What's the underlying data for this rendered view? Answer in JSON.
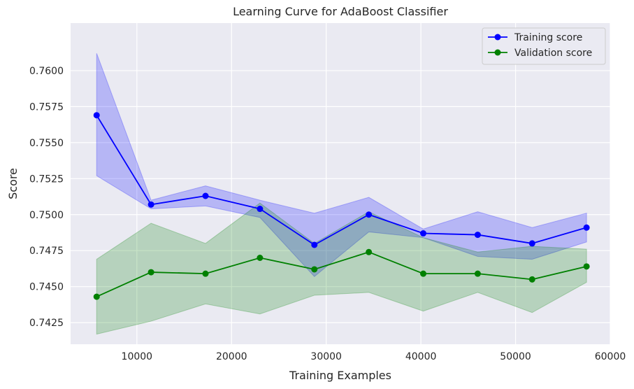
{
  "chart_data": {
    "type": "line",
    "title": "Learning Curve for AdaBoost Classifier",
    "xlabel": "Training Examples",
    "ylabel": "Score",
    "xlim": [
      3000,
      60000
    ],
    "ylim": [
      0.741,
      0.7633
    ],
    "xticks": [
      10000,
      20000,
      30000,
      40000,
      50000,
      60000
    ],
    "yticks": [
      0.7425,
      0.745,
      0.7475,
      0.75,
      0.7525,
      0.755,
      0.7575,
      0.76
    ],
    "grid": true,
    "legend_position": "top-right",
    "x": [
      5750,
      11500,
      17250,
      23000,
      28750,
      34500,
      40250,
      46000,
      51750,
      57500
    ],
    "series": [
      {
        "name": "Training score",
        "color": "#0000ff",
        "values": [
          0.7569,
          0.7507,
          0.7513,
          0.7504,
          0.7479,
          0.75,
          0.7487,
          0.7486,
          0.748,
          0.7491
        ],
        "upper": [
          0.7612,
          0.751,
          0.752,
          0.751,
          0.7501,
          0.7512,
          0.749,
          0.7502,
          0.7491,
          0.7501
        ],
        "lower": [
          0.7527,
          0.7504,
          0.7506,
          0.7498,
          0.7457,
          0.7488,
          0.7484,
          0.7471,
          0.7469,
          0.7481
        ]
      },
      {
        "name": "Validation score",
        "color": "#008000",
        "values": [
          0.7443,
          0.746,
          0.7459,
          0.747,
          0.7462,
          0.7474,
          0.7459,
          0.7459,
          0.7455,
          0.7464
        ],
        "upper": [
          0.7469,
          0.7494,
          0.748,
          0.7508,
          0.748,
          0.7502,
          0.7484,
          0.7474,
          0.7478,
          0.7476
        ],
        "lower": [
          0.7417,
          0.7426,
          0.7438,
          0.7431,
          0.7444,
          0.7446,
          0.7433,
          0.7446,
          0.7432,
          0.7453
        ]
      }
    ]
  }
}
